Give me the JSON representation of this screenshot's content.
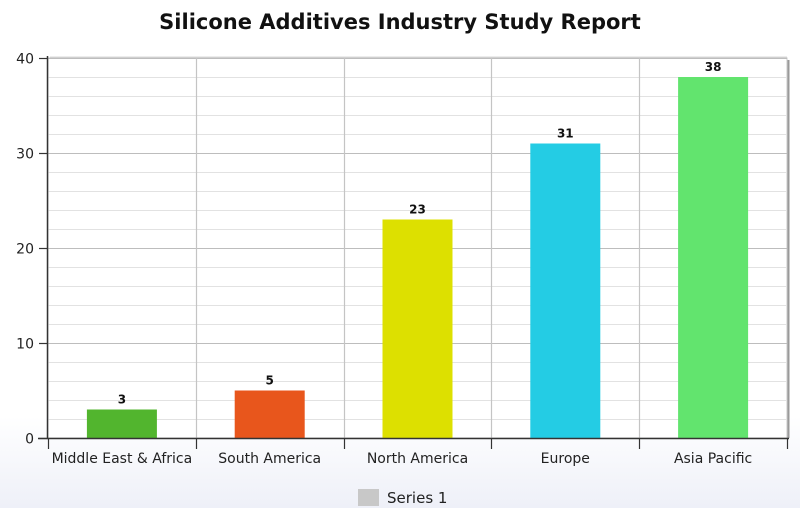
{
  "chart_data": {
    "type": "bar",
    "title": "Silicone Additives Industry Study Report",
    "categories": [
      "Middle East & Africa",
      "South America",
      "North America",
      "Europe",
      "Asia Pacific"
    ],
    "series": [
      {
        "name": "Series 1",
        "values": [
          3,
          5,
          23,
          31,
          38
        ],
        "colors": [
          "#52b52e",
          "#e8561c",
          "#dde000",
          "#24cce4",
          "#62e46e"
        ]
      }
    ],
    "value_labels": [
      "3",
      "5",
      "23",
      "31",
      "38"
    ],
    "ylim": [
      0,
      40
    ],
    "yticks": [
      "0",
      "10",
      "20",
      "30",
      "40"
    ],
    "xlabel": "",
    "ylabel": "",
    "grid": true,
    "legend": {
      "placement": "bottom-center",
      "swatch_color": "#c8c8c8"
    }
  }
}
